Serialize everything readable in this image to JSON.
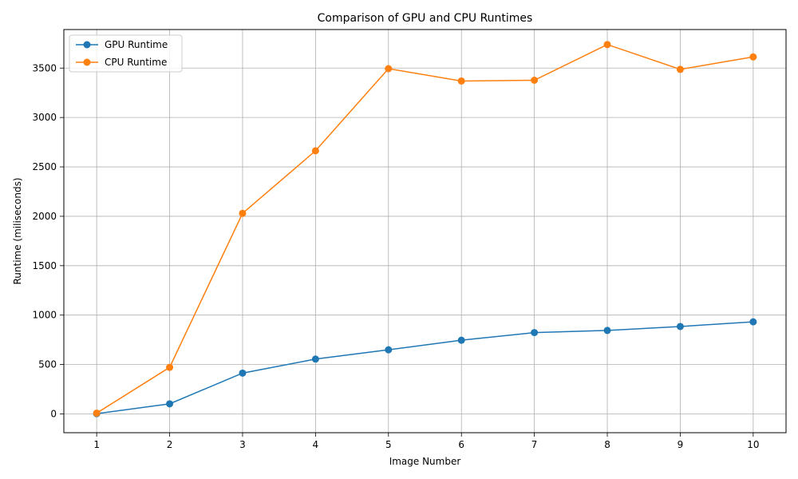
{
  "chart_data": {
    "type": "line",
    "title": "Comparison of GPU and CPU Runtimes",
    "xlabel": "Image Number",
    "ylabel": "Runtime (miliseconds)",
    "x": [
      1,
      2,
      3,
      4,
      5,
      6,
      7,
      8,
      9,
      10
    ],
    "xticks": [
      "1",
      "2",
      "3",
      "4",
      "5",
      "6",
      "7",
      "8",
      "9",
      "10"
    ],
    "yticks": [
      "0",
      "500",
      "1000",
      "1500",
      "2000",
      "2500",
      "3000",
      "3500"
    ],
    "xlim": [
      0.55,
      10.45
    ],
    "ylim": [
      -190,
      3890
    ],
    "grid": true,
    "legend_position": "upper-left",
    "series": [
      {
        "name": "GPU Runtime",
        "color": "#1f77b4",
        "marker": "circle",
        "values": [
          3,
          102,
          413,
          555,
          649,
          746,
          823,
          845,
          885,
          932
        ]
      },
      {
        "name": "CPU Runtime",
        "color": "#ff7f0e",
        "marker": "circle",
        "values": [
          8,
          471,
          2030,
          2663,
          3494,
          3369,
          3377,
          3738,
          3487,
          3613
        ]
      }
    ]
  }
}
